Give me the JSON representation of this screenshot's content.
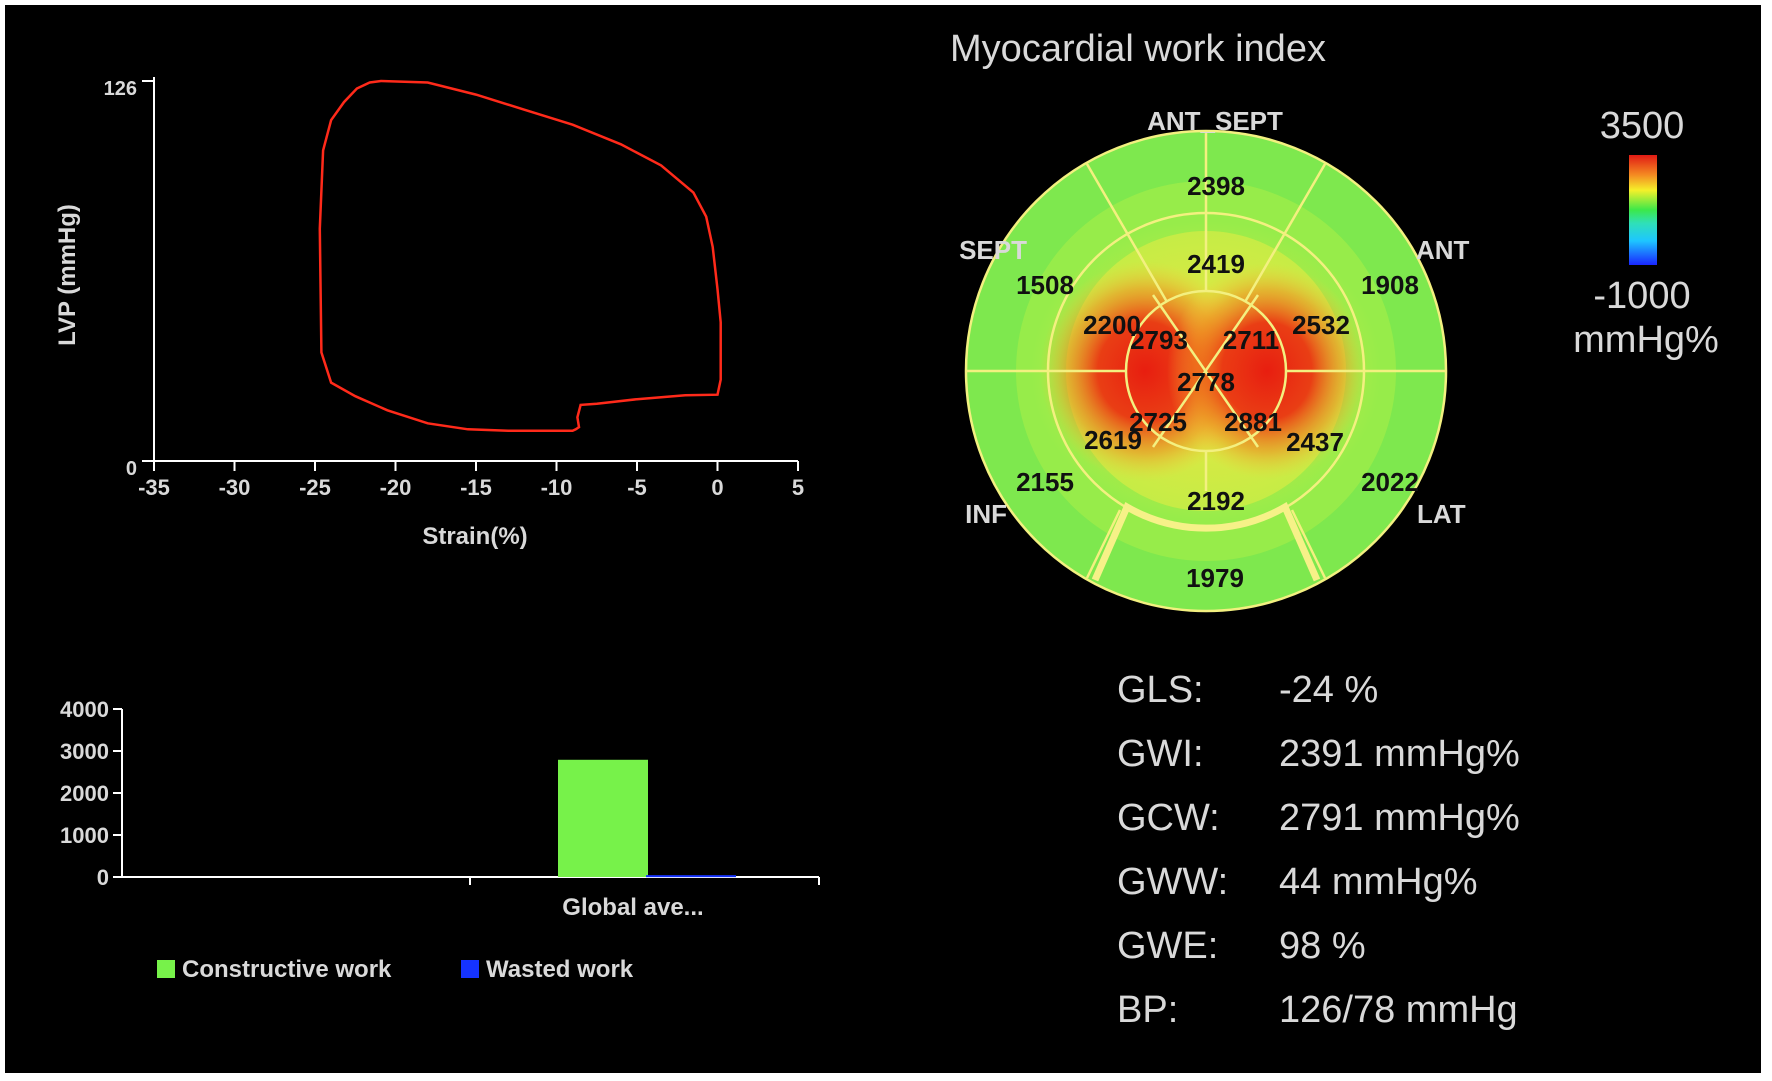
{
  "charts": {
    "pv_loop": {
      "type": "line",
      "xlabel": "Strain(%)",
      "ylabel": "LVP (mmHg)",
      "x_ticks": [
        "-35",
        "-30",
        "-25",
        "-20",
        "-15",
        "-10",
        "-5",
        "0",
        "5"
      ],
      "y_ticks": [
        "126",
        "0"
      ],
      "xlim": [
        -35,
        5
      ],
      "ylim": [
        0,
        126
      ],
      "color": "#ff2a1a"
    },
    "bullseye": {
      "type": "heatmap",
      "title": "Myocardial work index",
      "wall_labels": {
        "ant_sept": "ANT_SEPT",
        "ant": "ANT",
        "lat": "LAT",
        "inf": "INF",
        "sept": "SEPT"
      },
      "colorbar": {
        "max": "3500",
        "min": "-1000",
        "unit": "mmHg%"
      }
    },
    "work_bar": {
      "type": "bar",
      "categories": [
        "Global ave..."
      ],
      "y_ticks": [
        "4000",
        "3000",
        "2000",
        "1000",
        "0"
      ],
      "ylim": [
        0,
        4000
      ],
      "legend": {
        "constructive": "Constructive work",
        "wasted": "Wasted work"
      },
      "colors": {
        "constructive": "#77f24a",
        "wasted": "#1533ff"
      }
    }
  },
  "chart_data": [
    {
      "type": "line",
      "xlabel": "Strain(%)",
      "ylabel": "LVP (mmHg)",
      "xlim": [
        -35,
        5
      ],
      "ylim": [
        0,
        126
      ],
      "series": [
        {
          "x": [
            -20.9,
            -18.0,
            -15.0,
            -12.0,
            -9.0,
            -6.0,
            -3.5,
            -1.5,
            -0.7,
            -0.3,
            0.0,
            0.2,
            0.2,
            0.0,
            -2.0,
            -5.0,
            -7.5,
            -8.5,
            -8.7,
            -8.6,
            -8.8,
            -9.0,
            -10.5,
            -13.0,
            -15.5,
            -18.0,
            -20.5,
            -22.5,
            -24.0,
            -24.6,
            -24.7,
            -24.5,
            -24.0,
            -23.2,
            -22.4,
            -21.6,
            -20.9
          ],
          "y": [
            126,
            125.5,
            121.5,
            116.5,
            111.5,
            105,
            98,
            89,
            81,
            71,
            57,
            46,
            27,
            22,
            21.8,
            20.5,
            19,
            18.6,
            14.5,
            11.2,
            10.5,
            10,
            10,
            10,
            10.5,
            12.5,
            16.8,
            21.5,
            26,
            36,
            77,
            103,
            113,
            119,
            123.5,
            125.5,
            126
          ]
        }
      ]
    },
    {
      "type": "heatmap",
      "title": "Myocardial work index",
      "unit": "mmHg%",
      "color_range": [
        -1000,
        3500
      ],
      "segments": {
        "basal": {
          "ant_sept": 2398,
          "ant": 1908,
          "lat": 2022,
          "inf": 2155,
          "sept": 1508,
          "post": 1979
        },
        "mid": {
          "ant_sept": 2419,
          "ant": 2532,
          "lat": 2437,
          "inf": 2192,
          "inf_sept": 2619,
          "sept": 2200
        },
        "apical": {
          "ant": 2711,
          "lat": 2881,
          "inf": 2725,
          "sept": 2793
        },
        "apex": 2778
      }
    },
    {
      "type": "bar",
      "categories": [
        "Global ave..."
      ],
      "ylim": [
        0,
        4000
      ],
      "series": [
        {
          "name": "Constructive work",
          "values": [
            2791
          ]
        },
        {
          "name": "Wasted work",
          "values": [
            44
          ]
        }
      ]
    }
  ],
  "stats": [
    {
      "label": "GLS:",
      "value": "-24 %"
    },
    {
      "label": "GWI:",
      "value": "2391 mmHg%"
    },
    {
      "label": "GCW:",
      "value": "2791 mmHg%"
    },
    {
      "label": "GWW:",
      "value": "44 mmHg%"
    },
    {
      "label": "GWE:",
      "value": "98 %"
    },
    {
      "label": "BP:",
      "value": "126/78 mmHg"
    }
  ]
}
